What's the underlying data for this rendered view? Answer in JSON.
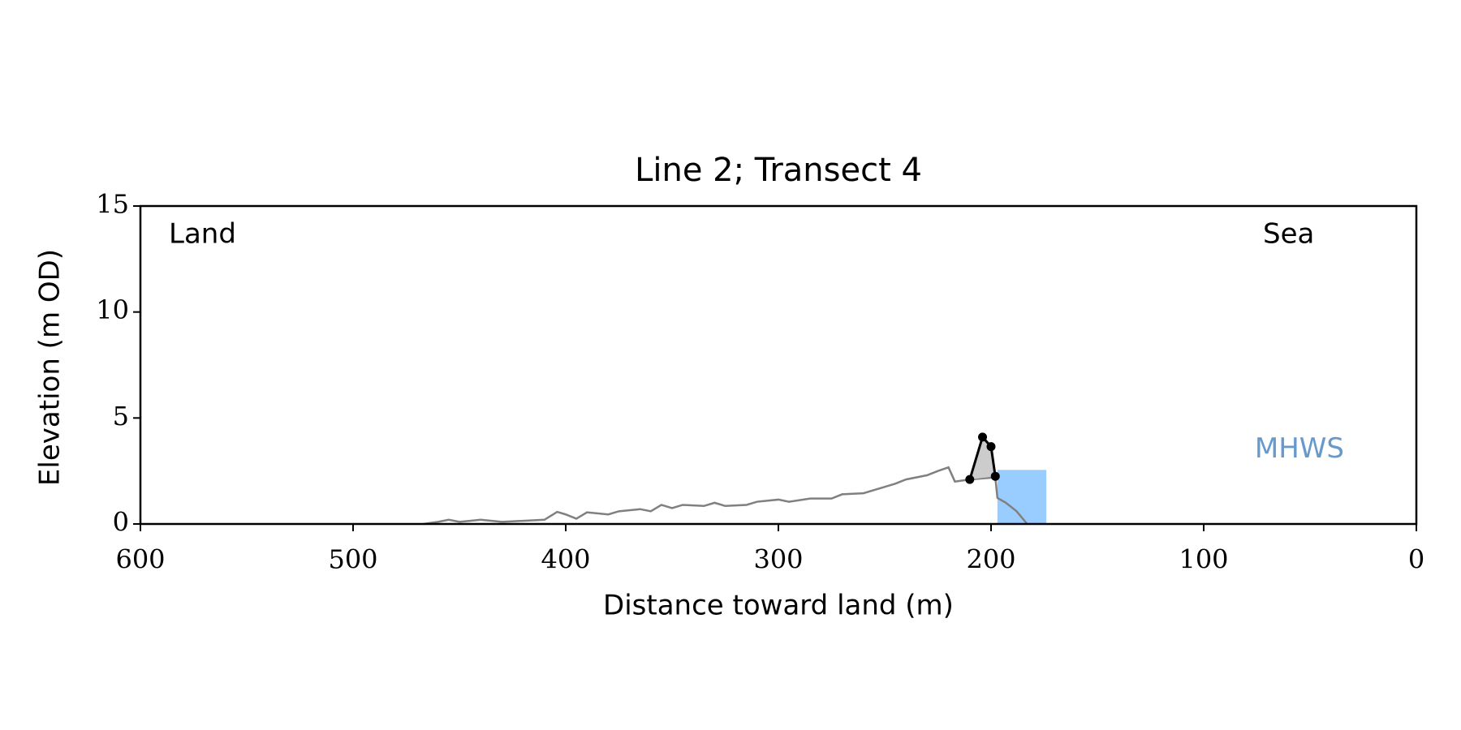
{
  "chart_data": {
    "type": "line",
    "title": "Line 2; Transect 4",
    "x_label": "Distance toward land (m)",
    "y_label": "Elevation (m OD)",
    "annotations": {
      "left": "Land",
      "right": "Sea"
    },
    "xlim": [
      600,
      0
    ],
    "xticks": [
      600,
      500,
      400,
      300,
      200,
      100,
      0
    ],
    "ylim": [
      0,
      15
    ],
    "yticks": [
      0,
      5,
      10,
      15
    ],
    "series": [
      {
        "color": "#808080",
        "markers": false,
        "x": [
          467,
          460,
          455,
          450,
          445,
          440,
          430,
          420,
          410,
          404,
          400,
          395,
          390,
          380,
          375,
          365,
          360,
          355,
          350,
          345,
          335,
          330,
          325,
          315,
          310,
          300,
          295,
          285,
          275,
          270,
          260,
          255,
          245,
          240,
          230,
          225,
          220,
          217,
          210,
          198,
          197,
          193,
          188,
          183
        ],
        "values": [
          0,
          0.1,
          0.2,
          0.1,
          0.15,
          0.2,
          0.1,
          0.15,
          0.2,
          0.57,
          0.45,
          0.25,
          0.55,
          0.45,
          0.6,
          0.7,
          0.6,
          0.9,
          0.75,
          0.9,
          0.85,
          1.0,
          0.85,
          0.9,
          1.05,
          1.15,
          1.05,
          1.2,
          1.2,
          1.4,
          1.45,
          1.6,
          1.9,
          2.1,
          2.3,
          2.5,
          2.67,
          2.0,
          2.1,
          2.2,
          1.23,
          1.0,
          0.6,
          0
        ]
      },
      {
        "color": "#000000",
        "markers": true,
        "fill": "#cccccc",
        "x": [
          210,
          204,
          200,
          198
        ],
        "values": [
          2.1,
          4.1,
          3.65,
          2.25
        ]
      }
    ],
    "mhws": {
      "label": "MHWS",
      "value": 2.55,
      "x_range": [
        197,
        174
      ],
      "color": "#99ccff",
      "label_color": "#6699cc",
      "label_x": 76,
      "label_y": 3.5
    }
  }
}
